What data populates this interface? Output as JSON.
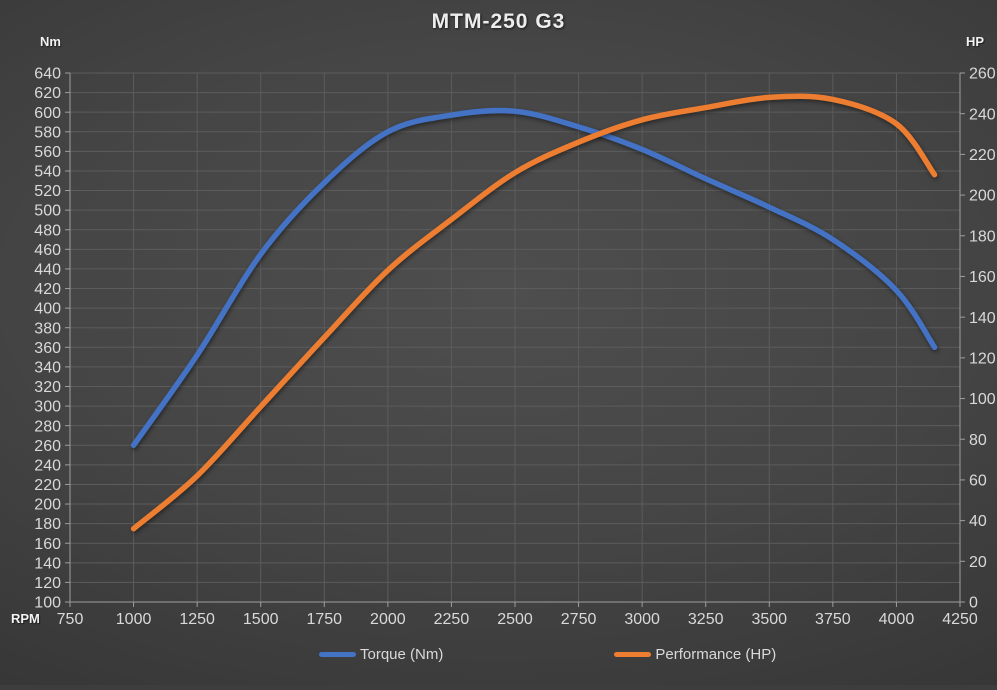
{
  "title": "MTM-250 G3",
  "axes": {
    "left_title": "Nm",
    "right_title": "HP",
    "x_title": "RPM"
  },
  "legend": [
    {
      "label": "Torque (Nm)",
      "color": "#4472C4"
    },
    {
      "label": "Performance (HP)",
      "color": "#ED7D31"
    }
  ],
  "colors": {
    "background_center": "#4e4e4e",
    "background_edge": "#2b2b2b",
    "gridline": "#5c5c5c",
    "axis_line": "#9e9e9e",
    "tick_label": "#d9d9d9",
    "title_text": "#ededed"
  },
  "chart_data": {
    "type": "line",
    "title": "MTM-250 G3",
    "xlabel": "RPM",
    "ylabel_left": "Nm",
    "ylabel_right": "HP",
    "grid": true,
    "legend_position": "bottom",
    "x_axis": {
      "min": 750,
      "max": 4250,
      "tick_step": 250
    },
    "y_axis_left": {
      "min": 100,
      "max": 640,
      "tick_step": 20
    },
    "y_axis_right": {
      "min": 0,
      "max": 260,
      "tick_step": 20
    },
    "x": [
      1000,
      1250,
      1500,
      1750,
      2000,
      2250,
      2500,
      2750,
      3000,
      3250,
      3500,
      3750,
      4000,
      4150
    ],
    "series": [
      {
        "name": "Torque (Nm)",
        "id_name": "torque-curve",
        "axis": "left",
        "color": "#4472C4",
        "values": [
          260,
          352,
          455,
          528,
          580,
          597,
          601,
          585,
          562,
          532,
          503,
          470,
          418,
          360
        ]
      },
      {
        "name": "Performance (HP)",
        "id_name": "performance-curve",
        "axis": "right",
        "color": "#ED7D31",
        "values": [
          36,
          62,
          96,
          130,
          163,
          188,
          211,
          226,
          237,
          243,
          248,
          247,
          235,
          210
        ]
      }
    ]
  }
}
